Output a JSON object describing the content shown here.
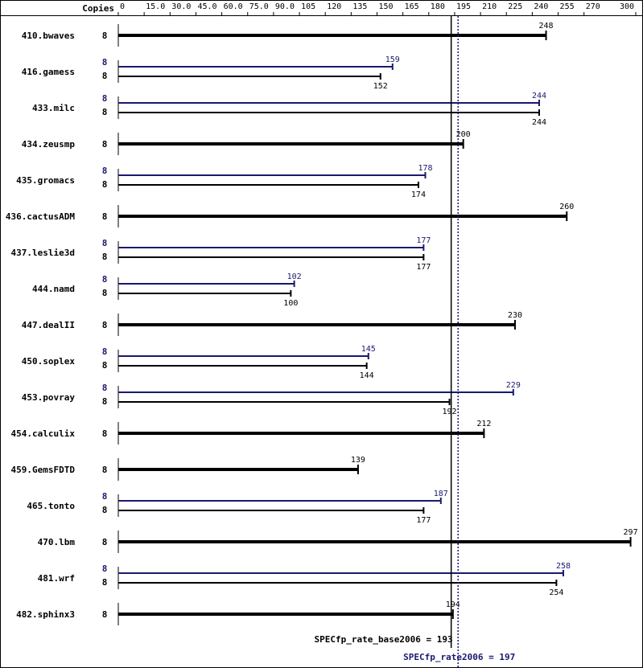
{
  "chart_data": {
    "type": "bar",
    "copies_header": "Copies",
    "x_ticks": [
      "0",
      "15.0",
      "30.0",
      "45.0",
      "60.0",
      "75.0",
      "90.0",
      "105",
      "120",
      "135",
      "150",
      "165",
      "180",
      "195",
      "210",
      "225",
      "240",
      "255",
      "270",
      "300"
    ],
    "xlim": [
      0,
      300
    ],
    "benchmarks": [
      {
        "name": "410.bwaves",
        "base": {
          "copies": "8",
          "value": 248,
          "label": "248"
        },
        "peak": null
      },
      {
        "name": "416.gamess",
        "base": {
          "copies": "8",
          "value": 152,
          "label": "152"
        },
        "peak": {
          "copies": "8",
          "value": 159,
          "label": "159"
        }
      },
      {
        "name": "433.milc",
        "base": {
          "copies": "8",
          "value": 244,
          "label": "244"
        },
        "peak": {
          "copies": "8",
          "value": 244,
          "label": "244"
        }
      },
      {
        "name": "434.zeusmp",
        "base": {
          "copies": "8",
          "value": 200,
          "label": "200"
        },
        "peak": null
      },
      {
        "name": "435.gromacs",
        "base": {
          "copies": "8",
          "value": 174,
          "label": "174"
        },
        "peak": {
          "copies": "8",
          "value": 178,
          "label": "178"
        }
      },
      {
        "name": "436.cactusADM",
        "base": {
          "copies": "8",
          "value": 260,
          "label": "260"
        },
        "peak": null
      },
      {
        "name": "437.leslie3d",
        "base": {
          "copies": "8",
          "value": 177,
          "label": "177"
        },
        "peak": {
          "copies": "8",
          "value": 177,
          "label": "177"
        }
      },
      {
        "name": "444.namd",
        "base": {
          "copies": "8",
          "value": 100,
          "label": "100"
        },
        "peak": {
          "copies": "8",
          "value": 102,
          "label": "102"
        }
      },
      {
        "name": "447.dealII",
        "base": {
          "copies": "8",
          "value": 230,
          "label": "230"
        },
        "peak": null
      },
      {
        "name": "450.soplex",
        "base": {
          "copies": "8",
          "value": 144,
          "label": "144"
        },
        "peak": {
          "copies": "8",
          "value": 145,
          "label": "145"
        }
      },
      {
        "name": "453.povray",
        "base": {
          "copies": "8",
          "value": 192,
          "label": "192"
        },
        "peak": {
          "copies": "8",
          "value": 229,
          "label": "229"
        }
      },
      {
        "name": "454.calculix",
        "base": {
          "copies": "8",
          "value": 212,
          "label": "212"
        },
        "peak": null
      },
      {
        "name": "459.GemsFDTD",
        "base": {
          "copies": "8",
          "value": 139,
          "label": "139"
        },
        "peak": null
      },
      {
        "name": "465.tonto",
        "base": {
          "copies": "8",
          "value": 177,
          "label": "177"
        },
        "peak": {
          "copies": "8",
          "value": 187,
          "label": "187"
        }
      },
      {
        "name": "470.lbm",
        "base": {
          "copies": "8",
          "value": 297,
          "label": "297"
        },
        "peak": null
      },
      {
        "name": "481.wrf",
        "base": {
          "copies": "8",
          "value": 254,
          "label": "254"
        },
        "peak": {
          "copies": "8",
          "value": 258,
          "label": "258"
        }
      },
      {
        "name": "482.sphinx3",
        "base": {
          "copies": "8",
          "value": 194,
          "label": "194"
        },
        "peak": null
      }
    ],
    "base_summary": {
      "label": "SPECfp_rate_base2006 = 193",
      "value": 193
    },
    "peak_summary": {
      "label": "SPECfp_rate2006 = 197",
      "value": 197
    },
    "colors": {
      "base": "#000000",
      "peak": "#191970"
    }
  }
}
